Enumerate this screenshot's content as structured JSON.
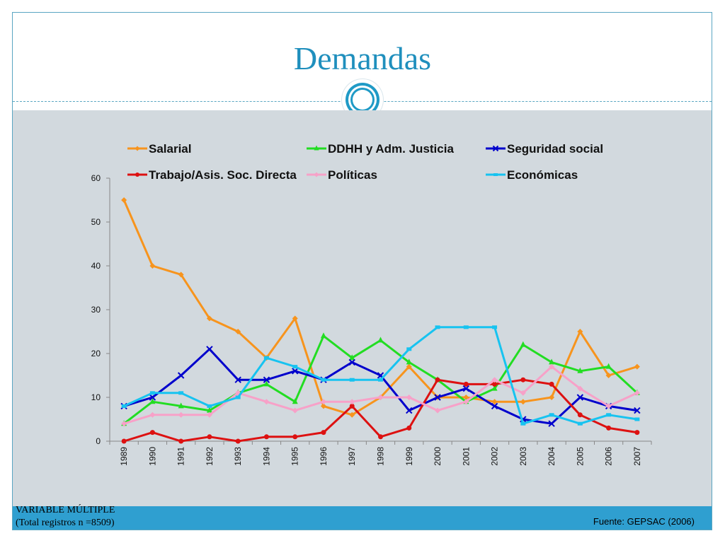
{
  "slide": {
    "title": "Demandas",
    "footer_left_line1": "VARIABLE MÚLTIPLE",
    "footer_left_line2": "(Total registros n =8509)",
    "footer_right": "Fuente: GEPSAC (2006)"
  },
  "chart_data": {
    "type": "line",
    "title": "",
    "xlabel": "",
    "ylabel": "",
    "ylim": [
      0,
      60
    ],
    "yticks": [
      0,
      10,
      20,
      30,
      40,
      50,
      60
    ],
    "legend_position": "top",
    "grid": false,
    "x": [
      "1989",
      "1990",
      "1991",
      "1992",
      "1993",
      "1994",
      "1995",
      "1996",
      "1997",
      "1998",
      "1999",
      "2000",
      "2001",
      "2002",
      "2003",
      "2004",
      "2005",
      "2006",
      "2007"
    ],
    "series": [
      {
        "name": "Salarial",
        "color": "#f7941d",
        "marker": "diamond",
        "values": [
          55,
          40,
          38,
          28,
          25,
          19,
          28,
          8,
          6,
          10,
          17,
          10,
          10,
          9,
          9,
          10,
          25,
          15,
          17
        ]
      },
      {
        "name": "DDHH y Adm. Justicia",
        "color": "#22dd22",
        "marker": "triangle",
        "values": [
          4,
          9,
          8,
          7,
          11,
          13,
          9,
          24,
          19,
          23,
          18,
          14,
          9,
          12,
          22,
          18,
          16,
          17,
          11
        ]
      },
      {
        "name": "Seguridad social",
        "color": "#0000cc",
        "marker": "x",
        "values": [
          8,
          10,
          15,
          21,
          14,
          14,
          16,
          14,
          18,
          15,
          7,
          10,
          12,
          8,
          5,
          4,
          10,
          8,
          7
        ]
      },
      {
        "name": "Trabajo/Asis. Soc. Directa",
        "color": "#dd1111",
        "marker": "circle",
        "values": [
          0,
          2,
          0,
          1,
          0,
          1,
          1,
          2,
          8,
          1,
          3,
          14,
          13,
          13,
          14,
          13,
          6,
          3,
          2
        ]
      },
      {
        "name": "Políticas",
        "color": "#f7a1c8",
        "marker": "diamond",
        "values": [
          4,
          6,
          6,
          6,
          11,
          9,
          7,
          9,
          9,
          10,
          10,
          7,
          9,
          14,
          11,
          17,
          12,
          8,
          11
        ]
      },
      {
        "name": "Económicas",
        "color": "#17c3f0",
        "marker": "square",
        "values": [
          8,
          11,
          11,
          8,
          10,
          19,
          17,
          14,
          14,
          14,
          21,
          26,
          26,
          26,
          4,
          6,
          4,
          6,
          5
        ]
      }
    ]
  }
}
